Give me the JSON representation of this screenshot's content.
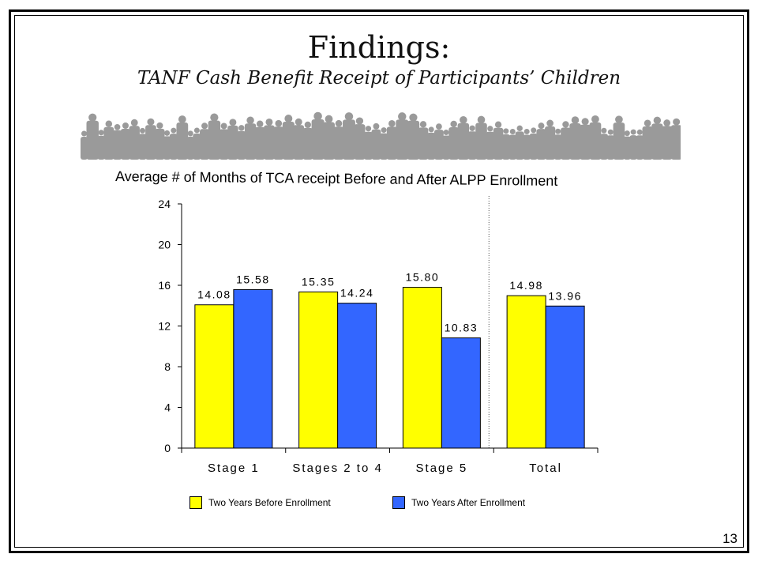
{
  "slide": {
    "title": "Findings:",
    "subtitle": "TANF Cash Benefit Receipt of Participants’ Children",
    "page_number": "13"
  },
  "chart_data": {
    "type": "bar",
    "title": "Average # of Months of TCA receipt Before and After ALPP Enrollment",
    "xlabel": "",
    "ylabel": "",
    "categories": [
      "Stage 1",
      "Stages 2 to 4",
      "Stage 5",
      "Total"
    ],
    "series": [
      {
        "name": "Two Years Before Enrollment",
        "values": [
          14.08,
          15.35,
          15.8,
          14.98
        ],
        "color": "#ffff00"
      },
      {
        "name": "Two Years After Enrollment",
        "values": [
          15.58,
          14.24,
          10.83,
          13.96
        ],
        "color": "#3366ff"
      }
    ],
    "data_labels": [
      [
        "14.08",
        "15.35",
        "15.80",
        "14.98"
      ],
      [
        "15.58",
        "14.24",
        "10.83",
        "13.96"
      ]
    ],
    "yticks": [
      0,
      4,
      8,
      12,
      16,
      20,
      24
    ],
    "ylim": [
      0,
      24
    ],
    "grid": false,
    "legend_position": "bottom",
    "separator_before_category": "Total"
  }
}
